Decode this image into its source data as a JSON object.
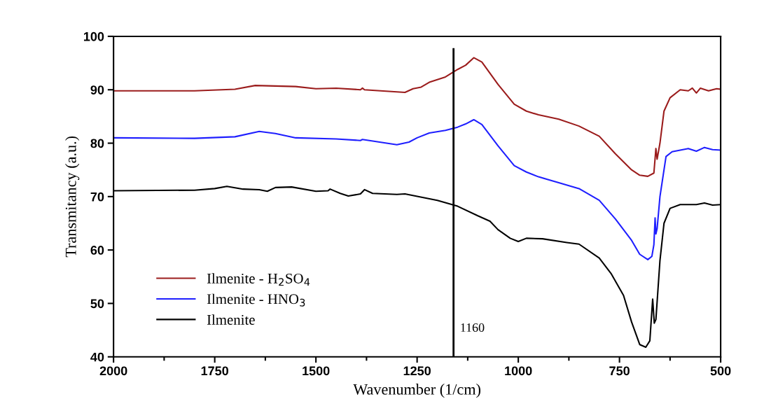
{
  "chart_data": {
    "type": "line",
    "xlabel": "Wavenumber (1/cm)",
    "ylabel": "Transmitancy (a.u.)",
    "xlim": [
      2000,
      500
    ],
    "xticks": [
      2000,
      1750,
      1500,
      1250,
      1000,
      750,
      500
    ],
    "ylim": [
      40,
      100
    ],
    "yticks": [
      40,
      50,
      60,
      70,
      80,
      90,
      100
    ],
    "grid": false,
    "legend": "bottom left",
    "marker": "none",
    "line_style": "solid",
    "ref_lines": [
      {
        "axis": "x",
        "value": 1160,
        "label": "1160",
        "color": "#000000"
      }
    ],
    "series": [
      {
        "name": "Ilmenite - H$_{2}$SO$_{4}$",
        "color": "#9b1c1c",
        "x": [
          2000,
          1800,
          1700,
          1650,
          1550,
          1500,
          1450,
          1390,
          1385,
          1380,
          1300,
          1280,
          1260,
          1240,
          1220,
          1180,
          1150,
          1130,
          1110,
          1090,
          1050,
          1010,
          980,
          950,
          900,
          850,
          800,
          760,
          720,
          700,
          680,
          665,
          660,
          657,
          650,
          640,
          625,
          600,
          580,
          570,
          560,
          550,
          530,
          510,
          500
        ],
        "values": [
          89.8,
          89.8,
          90.1,
          90.8,
          90.6,
          90.2,
          90.3,
          90.0,
          90.3,
          90.0,
          89.6,
          89.5,
          90.2,
          90.5,
          91.4,
          92.4,
          93.8,
          94.6,
          96.0,
          95.2,
          91.0,
          87.3,
          86.0,
          85.3,
          84.5,
          83.2,
          81.3,
          78.0,
          75.0,
          74.0,
          73.8,
          74.4,
          79.0,
          77.0,
          80.0,
          86.0,
          88.5,
          90.0,
          89.8,
          90.3,
          89.4,
          90.3,
          89.8,
          90.2,
          90.1
        ]
      },
      {
        "name": "Ilmenite - HNO$_{3}$",
        "color": "#1f1fff",
        "x": [
          2000,
          1800,
          1700,
          1640,
          1600,
          1550,
          1450,
          1390,
          1385,
          1300,
          1270,
          1250,
          1220,
          1180,
          1150,
          1130,
          1110,
          1090,
          1050,
          1010,
          980,
          950,
          900,
          850,
          800,
          760,
          720,
          700,
          680,
          670,
          665,
          662,
          660,
          657,
          650,
          635,
          620,
          600,
          580,
          560,
          540,
          520,
          500
        ],
        "values": [
          81.0,
          80.9,
          81.2,
          82.2,
          81.8,
          81.0,
          80.8,
          80.5,
          80.7,
          79.7,
          80.2,
          81.0,
          81.9,
          82.4,
          83.0,
          83.6,
          84.4,
          83.5,
          79.5,
          75.8,
          74.6,
          73.7,
          72.6,
          71.5,
          69.3,
          65.8,
          61.8,
          59.2,
          58.2,
          58.8,
          61.0,
          66.0,
          63.0,
          64.0,
          70.0,
          77.5,
          78.4,
          78.7,
          79.0,
          78.5,
          79.2,
          78.8,
          78.7
        ]
      },
      {
        "name": "Ilmenite",
        "color": "#000000",
        "x": [
          2000,
          1800,
          1750,
          1720,
          1680,
          1640,
          1620,
          1600,
          1560,
          1500,
          1470,
          1465,
          1440,
          1420,
          1390,
          1380,
          1360,
          1300,
          1280,
          1200,
          1150,
          1100,
          1070,
          1050,
          1020,
          1000,
          980,
          940,
          880,
          850,
          800,
          770,
          740,
          720,
          700,
          685,
          675,
          668,
          664,
          660,
          650,
          640,
          625,
          600,
          560,
          540,
          520,
          500
        ],
        "values": [
          71.1,
          71.2,
          71.5,
          71.9,
          71.4,
          71.3,
          71.0,
          71.7,
          71.8,
          71.0,
          71.1,
          71.4,
          70.6,
          70.1,
          70.5,
          71.3,
          70.6,
          70.4,
          70.5,
          69.3,
          68.2,
          66.4,
          65.4,
          63.8,
          62.2,
          61.6,
          62.2,
          62.1,
          61.4,
          61.1,
          58.5,
          55.5,
          51.5,
          46.5,
          42.3,
          41.8,
          43.0,
          50.8,
          46.3,
          47.0,
          58.0,
          65.0,
          67.8,
          68.5,
          68.5,
          68.8,
          68.4,
          68.5
        ]
      }
    ]
  }
}
